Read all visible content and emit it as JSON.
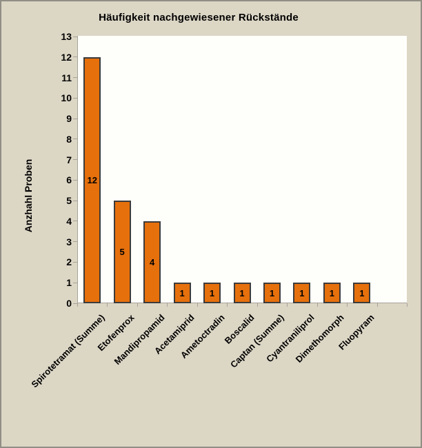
{
  "chart_data": {
    "type": "bar",
    "title": "Häufigkeit nachgewiesener Rückstände",
    "ylabel": "Anzhahl Proben",
    "xlabel": "",
    "categories": [
      "Spirotetramat (Summe)",
      "Etofenprox",
      "Mandipropamid",
      "Acetamiprid",
      "Ametoctradin",
      "Boscalid",
      "Captan (Summe)",
      "Cyantraniliprol",
      "Dimethomorph",
      "Fluopyram"
    ],
    "values": [
      12,
      5,
      4,
      1,
      1,
      1,
      1,
      1,
      1,
      1
    ],
    "bar_value_labels_shown": true,
    "ylim": [
      0,
      13
    ],
    "ytick_step": 1,
    "x_label_rotation_deg": 45,
    "grid": false,
    "legend": false,
    "extra_empty_category_slots": 1,
    "colors": {
      "background": "#DCD6C5",
      "frame_border": "#918E84",
      "plot_background": "#FEFEFA",
      "axis": "#A5A299",
      "bar_fill": "#E6700C",
      "bar_border": "#3B3B3B",
      "text": "#000000"
    }
  }
}
